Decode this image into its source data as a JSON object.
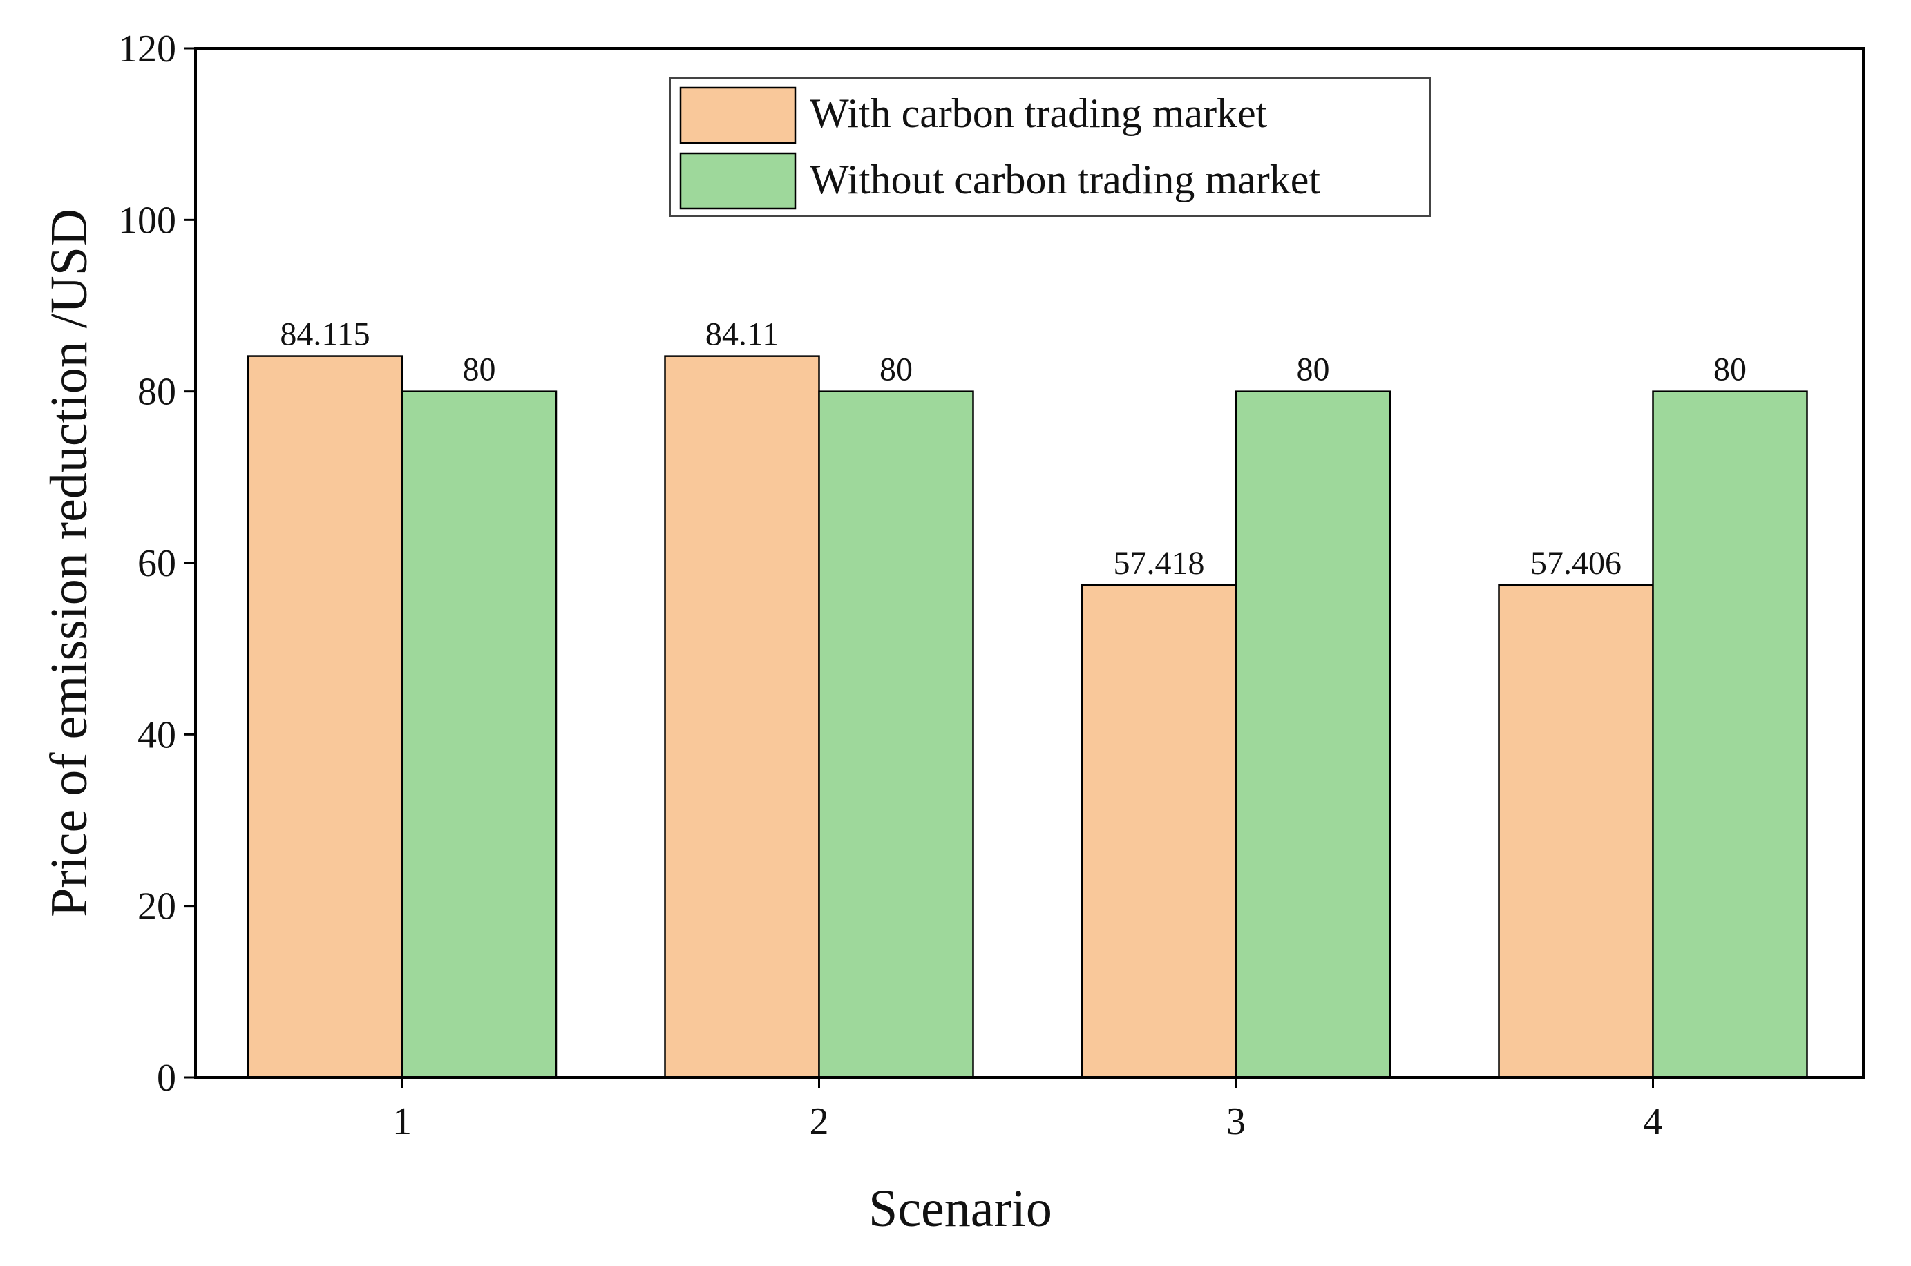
{
  "chart_data": {
    "type": "bar",
    "title": "",
    "xlabel": "Scenario",
    "ylabel": "Price of emission reduction /USD",
    "categories": [
      "1",
      "2",
      "3",
      "4"
    ],
    "ylim": [
      0,
      120
    ],
    "yticks": [
      0,
      20,
      40,
      60,
      80,
      100,
      120
    ],
    "grid": false,
    "legend_position": "top-center",
    "series": [
      {
        "name": "With carbon trading market",
        "color": "#F9C89A",
        "values": [
          84.115,
          84.11,
          57.418,
          57.406
        ],
        "labels": [
          "84.115",
          "84.11",
          "57.418",
          "57.406"
        ]
      },
      {
        "name": "Without carbon trading market",
        "color": "#9ED89B",
        "values": [
          80,
          80,
          80,
          80
        ],
        "labels": [
          "80",
          "80",
          "80",
          "80"
        ]
      }
    ]
  }
}
